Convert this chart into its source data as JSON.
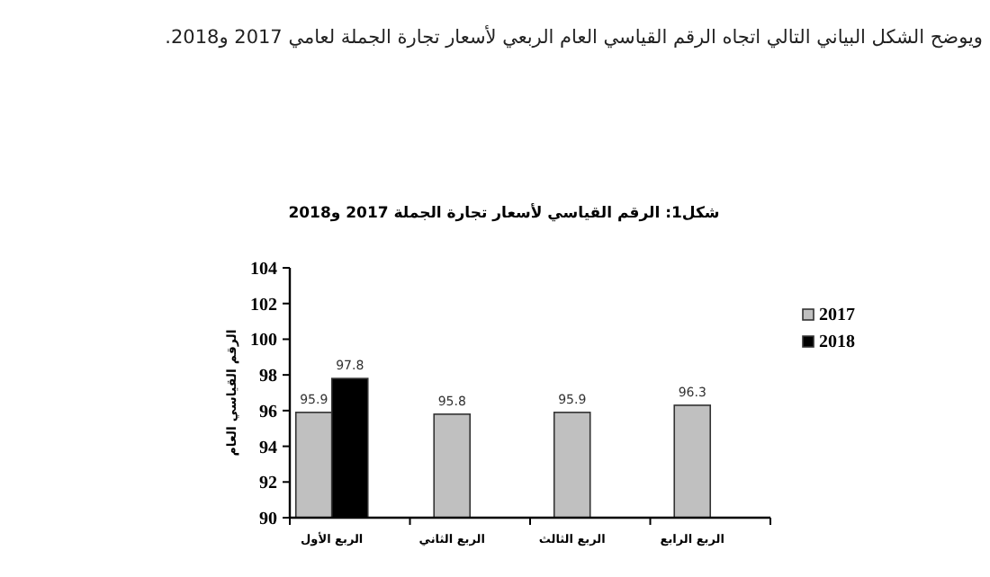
{
  "chart_data": {
    "type": "bar",
    "title": "شكل1: الرقم القياسي لأسعار تجارة الجملة 2017 و2018",
    "ylabel": "الرقم القياسي العام",
    "annotations": [
      "ويوضح الشكل البياني التالي اتجاه الرقم القياسي العام الربعي لأسعار تجارة الجملة لعامي 2017 و2018."
    ],
    "categories": [
      "الربع الأول",
      "الربع الثاني",
      "الربع الثالث",
      "الربع الرابع"
    ],
    "series": [
      {
        "name": "2017",
        "color": "#c0c0c0",
        "values": [
          95.9,
          95.8,
          95.9,
          96.3
        ]
      },
      {
        "name": "2018",
        "color": "#000000",
        "values": [
          97.8,
          null,
          null,
          null
        ]
      }
    ],
    "ylim": [
      90,
      104
    ],
    "yticks": [
      90,
      92,
      94,
      96,
      98,
      100,
      102,
      104
    ],
    "data_labels": true,
    "legend": "right",
    "grid": false
  }
}
